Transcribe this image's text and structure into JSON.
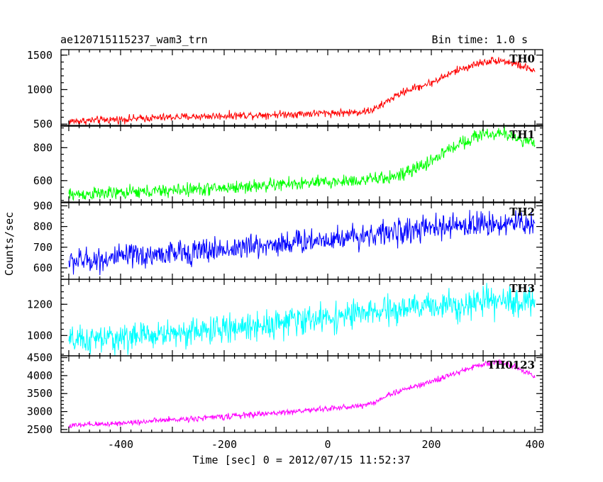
{
  "chart_data": {
    "type": "line",
    "title": "ae120715115237_wam3_trn",
    "subtitle": "Bin time: 1.0 s",
    "xlabel": "Time [sec] 0 = 2012/07/15 11:52:37",
    "ylabel": "Counts/sec",
    "xlim": [
      -515,
      415
    ],
    "x_ticks": [
      -400,
      -200,
      0,
      200,
      400
    ],
    "grid": false,
    "panels": [
      {
        "name": "TH0",
        "color": "#ff0000",
        "ylim": [
          470,
          1580
        ],
        "y_ticks": [
          500,
          1000,
          1500
        ],
        "noise": 28,
        "trend_x": [
          -500,
          -400,
          -300,
          -200,
          -100,
          0,
          50,
          80,
          100,
          120,
          150,
          200,
          250,
          300,
          330,
          360,
          400
        ],
        "trend_y": [
          540,
          570,
          600,
          620,
          640,
          660,
          670,
          690,
          750,
          860,
          980,
          1100,
          1280,
          1400,
          1430,
          1380,
          1270
        ]
      },
      {
        "name": "TH1",
        "color": "#00ff00",
        "ylim": [
          470,
          935
        ],
        "y_ticks": [
          600,
          800
        ],
        "noise": 20,
        "trend_x": [
          -500,
          -400,
          -300,
          -200,
          -100,
          0,
          100,
          150,
          200,
          250,
          300,
          350,
          400
        ],
        "trend_y": [
          515,
          525,
          540,
          555,
          575,
          590,
          610,
          640,
          720,
          820,
          885,
          880,
          820
        ]
      },
      {
        "name": "TH2",
        "color": "#0000ff",
        "ylim": [
          545,
          915
        ],
        "y_ticks": [
          600,
          700,
          800,
          900
        ],
        "noise": 30,
        "trend_x": [
          -500,
          -400,
          -300,
          -200,
          -100,
          0,
          100,
          200,
          300,
          400
        ],
        "trend_y": [
          630,
          650,
          670,
          690,
          715,
          740,
          765,
          790,
          815,
          815
        ]
      },
      {
        "name": "TH3",
        "color": "#00ffff",
        "ylim": [
          870,
          1360
        ],
        "y_ticks": [
          1000,
          1200
        ],
        "noise": 45,
        "trend_x": [
          -500,
          -400,
          -300,
          -200,
          -100,
          0,
          100,
          200,
          300,
          400
        ],
        "trend_y": [
          960,
          985,
          1015,
          1040,
          1080,
          1115,
          1150,
          1190,
          1210,
          1220
        ]
      },
      {
        "name": "TH0123",
        "color": "#ff00ff",
        "ylim": [
          2420,
          4550
        ],
        "y_ticks": [
          2500,
          3000,
          3500,
          4000,
          4500
        ],
        "noise": 40,
        "trend_x": [
          -500,
          -400,
          -300,
          -200,
          -100,
          0,
          50,
          80,
          100,
          120,
          150,
          200,
          250,
          300,
          330,
          360,
          400
        ],
        "trend_y": [
          2600,
          2680,
          2770,
          2860,
          2960,
          3080,
          3140,
          3200,
          3330,
          3480,
          3620,
          3830,
          4080,
          4330,
          4380,
          4250,
          4000
        ]
      }
    ]
  }
}
